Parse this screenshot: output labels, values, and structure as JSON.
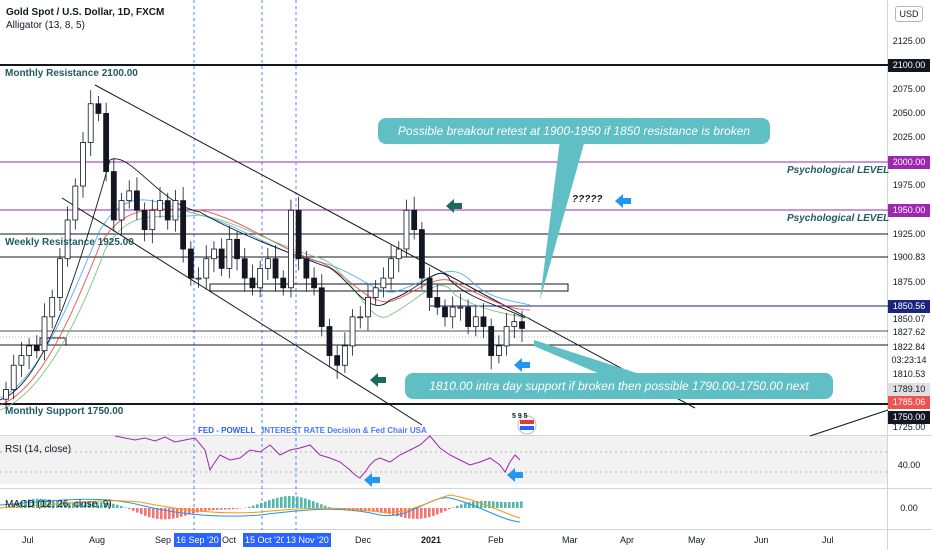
{
  "header": {
    "symbol": "Gold Spot / U.S. Dollar, 1D, FXCM",
    "indicator": "Alligator (13, 8, 5)",
    "currency_button": "USD"
  },
  "annotations": {
    "monthly_resistance": "Monthly Resistance 2100.00",
    "weekly_resistance": "Weekly Resistance 1925.00",
    "monthly_support": "Monthly Support 1750.00",
    "psych_level_1": "Psychological LEVEL",
    "psych_level_2": "Psychological LEVEL",
    "question": "?????",
    "callout_top": "Possible breakout retest at 1900-1950 if 1850 resistance is broken",
    "callout_bottom": "1810.00 intra day support if broken then possible 1790.00-1750.00 next"
  },
  "events": {
    "fed": "FED - POWELL",
    "overlap": "INTEREST RATE Decision & Fed Chair USA",
    "badge_number": "5 9 5"
  },
  "price_axis": {
    "ticks": [
      "2125.00",
      "2075.00",
      "2050.00",
      "2025.00",
      "1975.00",
      "1875.00",
      "1725.00"
    ],
    "boxes": [
      {
        "text": "2100.00",
        "bg": "#131722",
        "fg": "#ffffff"
      },
      {
        "text": "2000.00",
        "bg": "#9c27b0",
        "fg": "#ffffff"
      },
      {
        "text": "1950.00",
        "bg": "#9c27b0",
        "fg": "#ffffff"
      },
      {
        "text": "1925.00",
        "bg": "#ffffff",
        "fg": "#131722"
      },
      {
        "text": "1900.83",
        "bg": "#ffffff",
        "fg": "#131722"
      },
      {
        "text": "1850.56",
        "bg": "#1a237e",
        "fg": "#ffffff"
      },
      {
        "text": "1850.07",
        "bg": "#ffffff",
        "fg": "#131722"
      },
      {
        "text": "1827.62",
        "bg": "#ffffff",
        "fg": "#131722"
      },
      {
        "text": "1822.84",
        "bg": "#ffffff",
        "fg": "#131722"
      },
      {
        "text": "03:23:14",
        "bg": "#ffffff",
        "fg": "#131722"
      },
      {
        "text": "1810.53",
        "bg": "#ffffff",
        "fg": "#131722"
      },
      {
        "text": "1789.10",
        "bg": "#e0e0e0",
        "fg": "#131722"
      },
      {
        "text": "1785.06",
        "bg": "#ef5350",
        "fg": "#ffffff"
      },
      {
        "text": "1750.00",
        "bg": "#131722",
        "fg": "#ffffff"
      }
    ]
  },
  "rsi": {
    "label": "RSI (14, close)",
    "tick": "40.00"
  },
  "macd": {
    "label": "MACD (12, 26, close, 9)",
    "tick": "0.00"
  },
  "time_axis": [
    {
      "text": "Jul",
      "hl": false
    },
    {
      "text": "Aug",
      "hl": false
    },
    {
      "text": "Sep",
      "hl": false
    },
    {
      "text": "16 Sep '20",
      "hl": true
    },
    {
      "text": "Oct",
      "hl": false
    },
    {
      "text": "15 Oct '20",
      "hl": true
    },
    {
      "text": "13 Nov '20",
      "hl": true
    },
    {
      "text": "Dec",
      "hl": false
    },
    {
      "text": "2021",
      "hl": false
    },
    {
      "text": "Feb",
      "hl": false
    },
    {
      "text": "Mar",
      "hl": false
    },
    {
      "text": "Apr",
      "hl": false
    },
    {
      "text": "May",
      "hl": false
    },
    {
      "text": "Jun",
      "hl": false
    },
    {
      "text": "Jul",
      "hl": false
    }
  ],
  "colors": {
    "teal": "#1e5b66",
    "purple": "#9c27b0",
    "arrow_blue": "#2196f3",
    "arrow_green": "#1b6b5a",
    "callout": "#5fbfc5",
    "candle": "#131722"
  },
  "chart_data": {
    "type": "candlestick",
    "title": "Gold Spot / U.S. Dollar, 1D, FXCM",
    "approx_close": [
      1765,
      1790,
      1800,
      1810,
      1805,
      1840,
      1860,
      1900,
      1940,
      1975,
      2020,
      2060,
      2050,
      1990,
      1940,
      1960,
      1970,
      1950,
      1930,
      1950,
      1960,
      1940,
      1960,
      1910,
      1880,
      1880,
      1900,
      1910,
      1890,
      1920,
      1900,
      1880,
      1870,
      1890,
      1900,
      1880,
      1870,
      1950,
      1900,
      1880,
      1870,
      1830,
      1800,
      1790,
      1810,
      1840,
      1840,
      1860,
      1870,
      1880,
      1900,
      1910,
      1950,
      1930,
      1880,
      1860,
      1850,
      1840,
      1850,
      1850,
      1830,
      1840,
      1830,
      1800,
      1810,
      1830,
      1835,
      1828
    ],
    "horizontal_levels": [
      2100,
      2000,
      1950,
      1925,
      1900.83,
      1850.56,
      1827.62,
      1822.84,
      1750
    ],
    "ylim": [
      1715,
      2140
    ]
  }
}
